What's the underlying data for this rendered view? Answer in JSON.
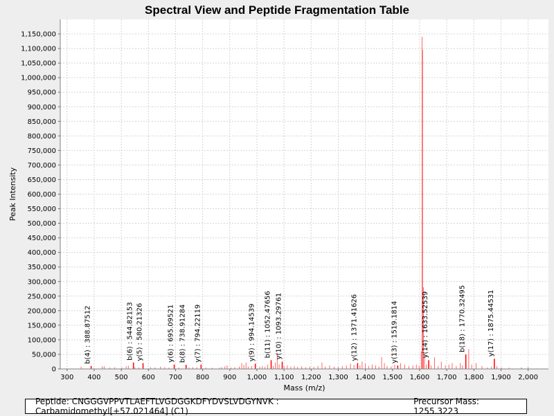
{
  "chart_data": {
    "type": "bar",
    "title": "Spectral View and Peptide Fragmentation Table",
    "xlabel": "Mass (m/z)",
    "ylabel": "Peak Intensity",
    "xlim": [
      275,
      2075
    ],
    "ylim": [
      0,
      1200000
    ],
    "xticks": [
      300,
      400,
      500,
      600,
      700,
      800,
      900,
      1000,
      1100,
      1200,
      1300,
      1400,
      1500,
      1600,
      1700,
      1800,
      1900,
      2000
    ],
    "xtick_labels": [
      "300",
      "400",
      "500",
      "600",
      "700",
      "800",
      "900",
      "1,000",
      "1,100",
      "1,200",
      "1,300",
      "1,400",
      "1,500",
      "1,600",
      "1,700",
      "1,800",
      "1,900",
      "2,000"
    ],
    "yticks": [
      0,
      50000,
      100000,
      150000,
      200000,
      250000,
      300000,
      350000,
      400000,
      450000,
      500000,
      550000,
      600000,
      650000,
      700000,
      750000,
      800000,
      850000,
      900000,
      950000,
      1000000,
      1050000,
      1100000,
      1150000
    ],
    "ytick_labels": [
      "0",
      "50,000",
      "100,000",
      "150,000",
      "200,000",
      "250,000",
      "300,000",
      "350,000",
      "400,000",
      "450,000",
      "500,000",
      "550,000",
      "600,000",
      "650,000",
      "700,000",
      "750,000",
      "800,000",
      "850,000",
      "900,000",
      "950,000",
      "1,000,000",
      "1,050,000",
      "1,100,000",
      "1,150,000"
    ],
    "grid": true,
    "peak_color": "#ff6666",
    "annotated_color": "#ff0000",
    "peaks": [
      {
        "mz": 352,
        "i": 8000
      },
      {
        "mz": 388.9,
        "i": 10000
      },
      {
        "mz": 430,
        "i": 9000
      },
      {
        "mz": 437,
        "i": 9000
      },
      {
        "mz": 458,
        "i": 5000
      },
      {
        "mz": 476,
        "i": 6000
      },
      {
        "mz": 502,
        "i": 5000
      },
      {
        "mz": 518,
        "i": 9000
      },
      {
        "mz": 526,
        "i": 11000
      },
      {
        "mz": 544.8,
        "i": 22000
      },
      {
        "mz": 550,
        "i": 6000
      },
      {
        "mz": 565,
        "i": 5000
      },
      {
        "mz": 580.2,
        "i": 20000
      },
      {
        "mz": 608,
        "i": 6000
      },
      {
        "mz": 624,
        "i": 5000
      },
      {
        "mz": 645,
        "i": 8000
      },
      {
        "mz": 660,
        "i": 6000
      },
      {
        "mz": 676,
        "i": 5000
      },
      {
        "mz": 695.1,
        "i": 15000
      },
      {
        "mz": 712,
        "i": 5000
      },
      {
        "mz": 738.9,
        "i": 14000
      },
      {
        "mz": 750,
        "i": 5000
      },
      {
        "mz": 764,
        "i": 6000
      },
      {
        "mz": 778,
        "i": 5000
      },
      {
        "mz": 794.2,
        "i": 15000
      },
      {
        "mz": 812,
        "i": 4000
      },
      {
        "mz": 835,
        "i": 4000
      },
      {
        "mz": 862,
        "i": 4000
      },
      {
        "mz": 870,
        "i": 6000
      },
      {
        "mz": 882,
        "i": 9000
      },
      {
        "mz": 890,
        "i": 12000
      },
      {
        "mz": 905,
        "i": 5000
      },
      {
        "mz": 918,
        "i": 6000
      },
      {
        "mz": 935,
        "i": 8000
      },
      {
        "mz": 944,
        "i": 20000
      },
      {
        "mz": 952,
        "i": 14000
      },
      {
        "mz": 960,
        "i": 22000
      },
      {
        "mz": 968,
        "i": 8000
      },
      {
        "mz": 980,
        "i": 10000
      },
      {
        "mz": 994.1,
        "i": 18000
      },
      {
        "mz": 1010,
        "i": 8000
      },
      {
        "mz": 1020,
        "i": 10000
      },
      {
        "mz": 1030,
        "i": 7000
      },
      {
        "mz": 1040,
        "i": 15000
      },
      {
        "mz": 1052.5,
        "i": 30000
      },
      {
        "mz": 1060,
        "i": 10000
      },
      {
        "mz": 1068,
        "i": 22000
      },
      {
        "mz": 1075,
        "i": 55000
      },
      {
        "mz": 1082,
        "i": 16000
      },
      {
        "mz": 1093.3,
        "i": 25000
      },
      {
        "mz": 1100,
        "i": 10000
      },
      {
        "mz": 1112,
        "i": 12000
      },
      {
        "mz": 1125,
        "i": 8000
      },
      {
        "mz": 1138,
        "i": 10000
      },
      {
        "mz": 1150,
        "i": 7000
      },
      {
        "mz": 1165,
        "i": 9000
      },
      {
        "mz": 1180,
        "i": 6000
      },
      {
        "mz": 1195,
        "i": 8000
      },
      {
        "mz": 1210,
        "i": 7000
      },
      {
        "mz": 1225,
        "i": 10000
      },
      {
        "mz": 1240,
        "i": 22000
      },
      {
        "mz": 1252,
        "i": 8000
      },
      {
        "mz": 1268,
        "i": 12000
      },
      {
        "mz": 1285,
        "i": 8000
      },
      {
        "mz": 1300,
        "i": 7000
      },
      {
        "mz": 1315,
        "i": 10000
      },
      {
        "mz": 1330,
        "i": 12000
      },
      {
        "mz": 1345,
        "i": 18000
      },
      {
        "mz": 1358,
        "i": 14000
      },
      {
        "mz": 1371.4,
        "i": 20000
      },
      {
        "mz": 1380,
        "i": 12000
      },
      {
        "mz": 1388,
        "i": 25000
      },
      {
        "mz": 1400,
        "i": 18000
      },
      {
        "mz": 1412,
        "i": 10000
      },
      {
        "mz": 1425,
        "i": 15000
      },
      {
        "mz": 1438,
        "i": 12000
      },
      {
        "mz": 1450,
        "i": 8000
      },
      {
        "mz": 1460,
        "i": 40000
      },
      {
        "mz": 1470,
        "i": 20000
      },
      {
        "mz": 1480,
        "i": 10000
      },
      {
        "mz": 1495,
        "i": 8000
      },
      {
        "mz": 1508,
        "i": 15000
      },
      {
        "mz": 1519.2,
        "i": 12000
      },
      {
        "mz": 1530,
        "i": 20000
      },
      {
        "mz": 1545,
        "i": 15000
      },
      {
        "mz": 1560,
        "i": 10000
      },
      {
        "mz": 1575,
        "i": 12000
      },
      {
        "mz": 1588,
        "i": 15000
      },
      {
        "mz": 1598,
        "i": 10000
      },
      {
        "mz": 1606,
        "i": 60000
      },
      {
        "mz": 1609,
        "i": 1140000
      },
      {
        "mz": 1611,
        "i": 1095000
      },
      {
        "mz": 1614,
        "i": 280000
      },
      {
        "mz": 1618,
        "i": 50000
      },
      {
        "mz": 1625,
        "i": 15000
      },
      {
        "mz": 1633.5,
        "i": 30000
      },
      {
        "mz": 1642,
        "i": 12000
      },
      {
        "mz": 1655,
        "i": 40000
      },
      {
        "mz": 1668,
        "i": 10000
      },
      {
        "mz": 1680,
        "i": 25000
      },
      {
        "mz": 1695,
        "i": 12000
      },
      {
        "mz": 1708,
        "i": 15000
      },
      {
        "mz": 1720,
        "i": 20000
      },
      {
        "mz": 1735,
        "i": 10000
      },
      {
        "mz": 1750,
        "i": 20000
      },
      {
        "mz": 1758,
        "i": 12000
      },
      {
        "mz": 1770.3,
        "i": 50000
      },
      {
        "mz": 1781,
        "i": 68000
      },
      {
        "mz": 1792,
        "i": 15000
      },
      {
        "mz": 1808,
        "i": 20000
      },
      {
        "mz": 1830,
        "i": 10000
      },
      {
        "mz": 1850,
        "i": 5000
      },
      {
        "mz": 1865,
        "i": 8000
      },
      {
        "mz": 1875.4,
        "i": 35000
      },
      {
        "mz": 1885,
        "i": 10000
      },
      {
        "mz": 1902,
        "i": 5000
      },
      {
        "mz": 1930,
        "i": 4000
      },
      {
        "mz": 1975,
        "i": 5000
      },
      {
        "mz": 2000,
        "i": 6000
      }
    ],
    "annotations": [
      {
        "label": "b(4) : 388.87512",
        "mz": 388.9,
        "i": 10000
      },
      {
        "label": "b(6) : 544.82153",
        "mz": 544.8,
        "i": 22000
      },
      {
        "label": "y(5) : 580.21326",
        "mz": 580.2,
        "i": 20000
      },
      {
        "label": "y(6) : 695.09521",
        "mz": 695.1,
        "i": 15000
      },
      {
        "label": "b(8) : 738.91284",
        "mz": 738.9,
        "i": 14000
      },
      {
        "label": "y(7) : 794.22119",
        "mz": 794.2,
        "i": 15000
      },
      {
        "label": "y(9) : 994.14539",
        "mz": 994.1,
        "i": 18000
      },
      {
        "label": "b(11) : 1052.47656",
        "mz": 1052.5,
        "i": 30000
      },
      {
        "label": "y(10) : 1093.29761",
        "mz": 1093.3,
        "i": 25000
      },
      {
        "label": "y(12) : 1371.41626",
        "mz": 1371.4,
        "i": 20000
      },
      {
        "label": "y(13) : 1519.1814",
        "mz": 1519.2,
        "i": 12000
      },
      {
        "label": "y(14) : 1633.52539",
        "mz": 1633.5,
        "i": 30000
      },
      {
        "label": "b(18) : 1770.32495",
        "mz": 1770.3,
        "i": 50000
      },
      {
        "label": "y(17) : 1875.44531",
        "mz": 1875.4,
        "i": 35000
      }
    ]
  },
  "footer": {
    "peptide": "Peptide: CNGGGVPPVTLAEFTLVGDGGKDFYDVSLVDGYNVK : Carbamidomethyl[+57.021464] (C1)",
    "precursor": "Precursor Mass: 1255.3223"
  }
}
